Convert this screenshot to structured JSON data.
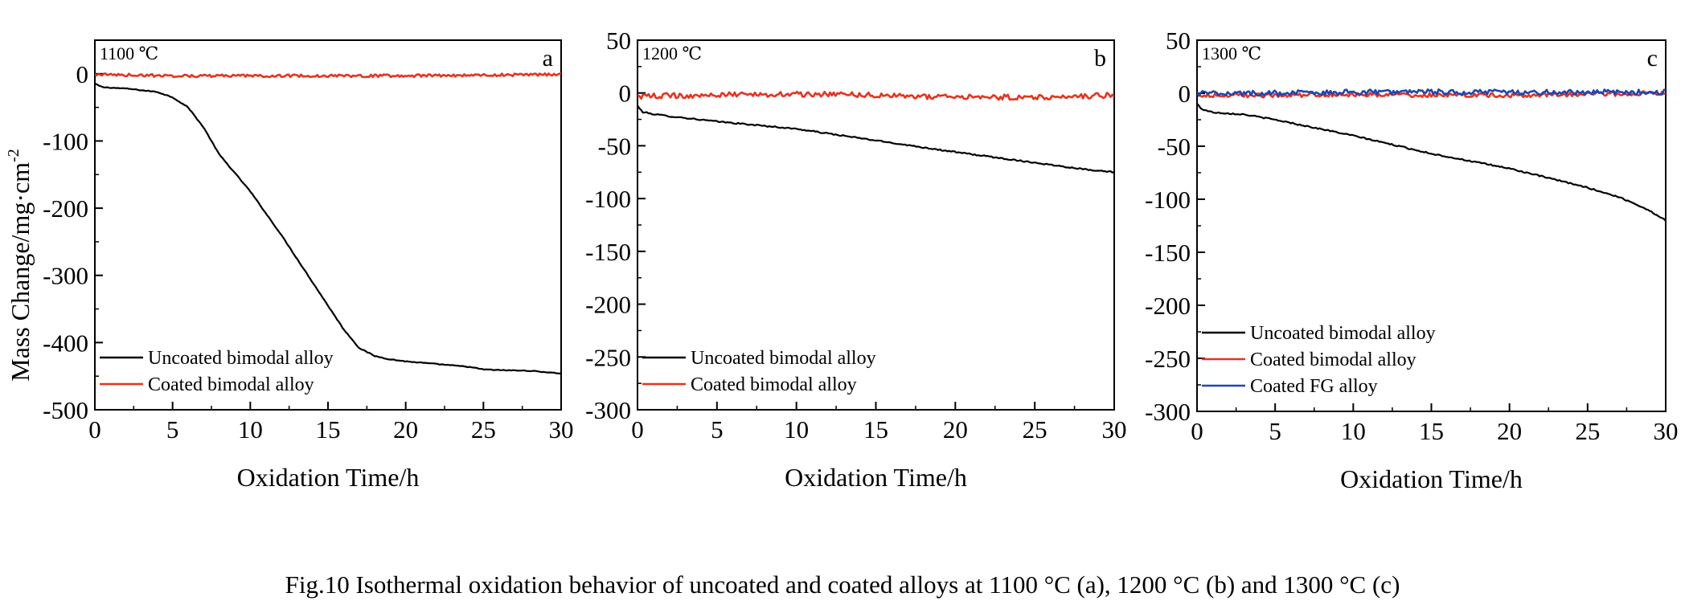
{
  "caption": "Fig.10    Isothermal oxidation behavior of uncoated and coated alloys at 1100 °C (a), 1200 °C (b) and 1300 °C (c)",
  "y_axis_title": "Mass Change/mg·cm",
  "y_axis_title_sup": "-2",
  "colors": {
    "uncoated": "#000000",
    "coated": "#e8321e",
    "fg": "#2046b0"
  },
  "chart_data": [
    {
      "type": "line",
      "panel_letter": "a",
      "temperature_label": "1100 ℃",
      "xlabel": "Oxidation Time/h",
      "ylabel": "Mass Change/mg·cm-2",
      "xlim": [
        0,
        30
      ],
      "ylim": [
        -500,
        50
      ],
      "xticks": [
        0,
        5,
        10,
        15,
        20,
        25,
        30
      ],
      "yticks": [
        0,
        -100,
        -200,
        -300,
        -400,
        -500
      ],
      "legend_position": "bottom-left",
      "series": [
        {
          "name": "Uncoated bimodal alloy",
          "color_key": "uncoated",
          "noise": 0,
          "x": [
            0,
            0.5,
            2,
            4,
            5,
            6,
            7,
            8,
            10,
            12,
            14,
            16,
            17,
            18,
            19,
            20,
            22,
            24,
            25,
            26,
            28,
            30
          ],
          "y": [
            -15,
            -20,
            -22,
            -27,
            -35,
            -50,
            -80,
            -120,
            -175,
            -240,
            -310,
            -380,
            -408,
            -420,
            -425,
            -428,
            -432,
            -436,
            -440,
            -441,
            -442,
            -446
          ]
        },
        {
          "name": "Coated bimodal alloy",
          "color_key": "coated",
          "noise": 2,
          "x": [
            0,
            5,
            10,
            15,
            20,
            25,
            30
          ],
          "y": [
            -1,
            -3,
            -3,
            -3,
            -3,
            -2,
            -1
          ]
        }
      ]
    },
    {
      "type": "line",
      "panel_letter": "b",
      "temperature_label": "1200 ℃",
      "xlabel": "Oxidation Time/h",
      "ylabel": "",
      "xlim": [
        0,
        30
      ],
      "ylim": [
        -300,
        50
      ],
      "xticks": [
        0,
        5,
        10,
        15,
        20,
        25,
        30
      ],
      "yticks": [
        50,
        0,
        -50,
        -100,
        -150,
        -200,
        -250,
        -300
      ],
      "legend_position": "bottom-left",
      "series": [
        {
          "name": "Uncoated bimodal alloy",
          "color_key": "uncoated",
          "noise": 0,
          "x": [
            0,
            0.3,
            1,
            2,
            5,
            10,
            15,
            20,
            25,
            28,
            30
          ],
          "y": [
            -12,
            -18,
            -20,
            -22,
            -27,
            -34,
            -45,
            -56,
            -66,
            -72,
            -75
          ]
        },
        {
          "name": "Coated bimodal alloy",
          "color_key": "coated",
          "noise": 2.5,
          "x": [
            0,
            5,
            10,
            15,
            20,
            25,
            30
          ],
          "y": [
            -3,
            -2,
            -1,
            -2,
            -4,
            -4,
            -2
          ]
        }
      ]
    },
    {
      "type": "line",
      "panel_letter": "c",
      "temperature_label": "1300 ℃",
      "xlabel": "Oxidation Time/h",
      "ylabel": "",
      "xlim": [
        0,
        30
      ],
      "ylim": [
        -300,
        50
      ],
      "xticks": [
        0,
        5,
        10,
        15,
        20,
        25,
        30
      ],
      "yticks": [
        50,
        0,
        -50,
        -100,
        -150,
        -200,
        -250,
        -300
      ],
      "legend_position": "bottom-left",
      "series": [
        {
          "name": "Uncoated bimodal alloy",
          "color_key": "uncoated",
          "noise": 0,
          "x": [
            0,
            0.3,
            1,
            3,
            5,
            10,
            15,
            20,
            25,
            27,
            28,
            29,
            30
          ],
          "y": [
            -10,
            -15,
            -18,
            -20,
            -25,
            -40,
            -57,
            -71,
            -89,
            -98,
            -104,
            -111,
            -120
          ]
        },
        {
          "name": "Coated bimodal alloy",
          "color_key": "coated",
          "noise": 2,
          "x": [
            0,
            5,
            10,
            15,
            20,
            25,
            30
          ],
          "y": [
            -2,
            -2,
            -1,
            -2,
            -2,
            -1,
            0
          ]
        },
        {
          "name": "Coated FG alloy",
          "color_key": "fg",
          "noise": 2.5,
          "x": [
            0,
            5,
            10,
            15,
            20,
            25,
            30
          ],
          "y": [
            0,
            0,
            1,
            1,
            1,
            1,
            1
          ]
        }
      ]
    }
  ]
}
